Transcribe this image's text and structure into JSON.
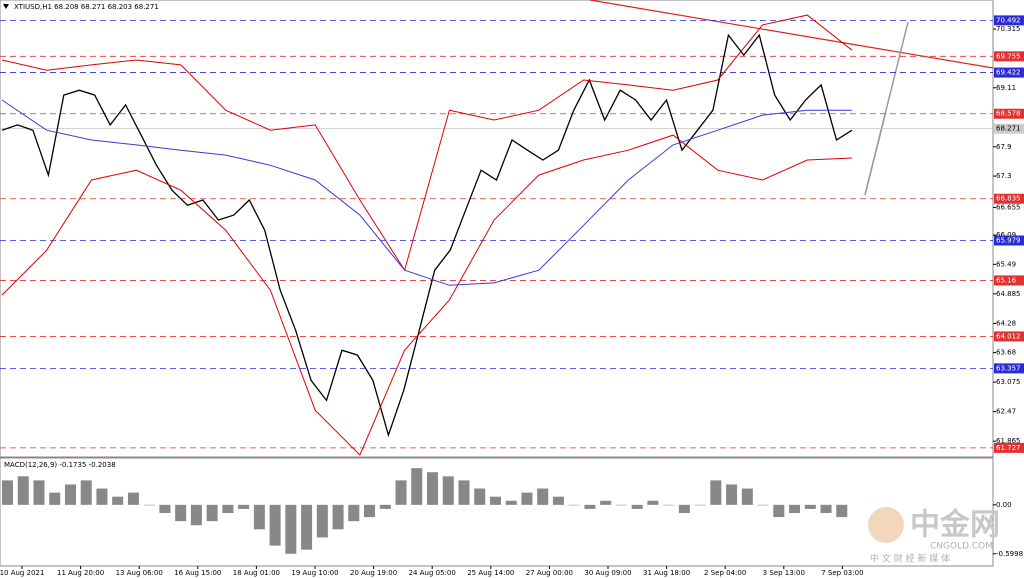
{
  "chart_data": {
    "type": "line",
    "title": "XTIUSD,H1 68.208 68.271 68.203 68.271",
    "ylim": [
      61.54,
      70.91
    ],
    "yticks": [
      70.315,
      69.11,
      67.9,
      67.3,
      66.655,
      66.09,
      65.49,
      64.885,
      64.28,
      63.68,
      63.075,
      62.47,
      61.865
    ],
    "levels": [
      {
        "value": 70.492,
        "color": "#2b2bd6"
      },
      {
        "value": 69.755,
        "color": "#e03030"
      },
      {
        "value": 69.422,
        "color": "#2b2bd6"
      },
      {
        "value": 68.578,
        "color": "#e03030"
      },
      {
        "value": 66.835,
        "color": "#e03030"
      },
      {
        "value": 65.979,
        "color": "#2b2bd6"
      },
      {
        "value": 65.16,
        "color": "#e03030"
      },
      {
        "value": 64.012,
        "color": "#e03030"
      },
      {
        "value": 63.357,
        "color": "#2b2bd6"
      },
      {
        "value": 61.727,
        "color": "#e03030"
      }
    ],
    "current_price": 68.271,
    "x_labels": [
      "10 Aug 2021",
      "11 Aug 20:00",
      "13 Aug 06:00",
      "16 Aug 15:00",
      "18 Aug 01:00",
      "19 Aug 10:00",
      "20 Aug 19:00",
      "24 Aug 05:00",
      "25 Aug 14:00",
      "27 Aug 00:00",
      "30 Aug 09:00",
      "31 Aug 18:00",
      "2 Sep 04:00",
      "3 Sep 13:00",
      "7 Sep 03:00"
    ],
    "series": [
      {
        "name": "price",
        "color": "#000000",
        "values": [
          68.24,
          68.35,
          68.24,
          67.32,
          68.96,
          69.06,
          68.96,
          68.35,
          68.76,
          68.14,
          67.52,
          67.01,
          66.7,
          66.81,
          66.4,
          66.5,
          66.81,
          66.19,
          64.96,
          64.14,
          63.11,
          62.7,
          63.73,
          63.63,
          63.11,
          61.99,
          62.91,
          64.14,
          65.37,
          65.78,
          66.6,
          67.42,
          67.22,
          68.04,
          67.83,
          67.63,
          67.83,
          68.65,
          69.27,
          68.45,
          69.06,
          68.86,
          68.45,
          68.86,
          67.83,
          68.24,
          68.65,
          70.19,
          69.78,
          70.19,
          68.96,
          68.45,
          68.86,
          69.17,
          68.04,
          68.24
        ]
      },
      {
        "name": "upper band",
        "color": "#e00000",
        "values": [
          69.68,
          69.47,
          69.58,
          69.68,
          69.58,
          68.65,
          68.24,
          68.35,
          66.81,
          65.37,
          68.65,
          68.45,
          68.65,
          69.27,
          69.17,
          69.06,
          69.27,
          70.4,
          70.6,
          69.88
        ]
      },
      {
        "name": "lower band",
        "color": "#e00000",
        "values": [
          64.86,
          65.78,
          67.22,
          67.42,
          67.01,
          66.19,
          64.96,
          62.5,
          61.58,
          63.73,
          64.76,
          66.4,
          67.32,
          67.63,
          67.83,
          68.14,
          67.42,
          67.22,
          67.63,
          67.67
        ]
      },
      {
        "name": "moving average",
        "color": "#3a3ad0",
        "values": [
          68.86,
          68.24,
          68.04,
          67.94,
          67.83,
          67.73,
          67.52,
          67.22,
          66.5,
          65.37,
          65.06,
          65.11,
          65.37,
          66.29,
          67.22,
          67.94,
          68.24,
          68.55,
          68.65,
          68.65
        ]
      }
    ],
    "macd": {
      "label": "MACD(12,26,9) -0.1735 -0.2038",
      "ylim": [
        -0.75,
        0.55
      ],
      "yticks": [
        {
          "value": 0,
          "label": "0.00"
        },
        -0.5998
      ],
      "values": [
        0.3,
        0.35,
        0.3,
        0.15,
        0.25,
        0.3,
        0.2,
        0.1,
        0.15,
        0.0,
        -0.1,
        -0.2,
        -0.25,
        -0.2,
        -0.1,
        -0.05,
        -0.3,
        -0.5,
        -0.6,
        -0.55,
        -0.4,
        -0.3,
        -0.2,
        -0.15,
        -0.05,
        0.3,
        0.45,
        0.4,
        0.35,
        0.3,
        0.2,
        0.1,
        0.05,
        0.15,
        0.2,
        0.1,
        0.0,
        -0.05,
        0.05,
        0.0,
        -0.05,
        0.05,
        0.0,
        -0.1,
        0.0,
        0.3,
        0.25,
        0.2,
        0.0,
        -0.15,
        -0.1,
        -0.05,
        -0.1,
        -0.15
      ]
    },
    "watermark": {
      "brand": "中金网",
      "site": "CNGOLD.COM",
      "tagline": "中 文 财 经 新 媒 体"
    }
  }
}
